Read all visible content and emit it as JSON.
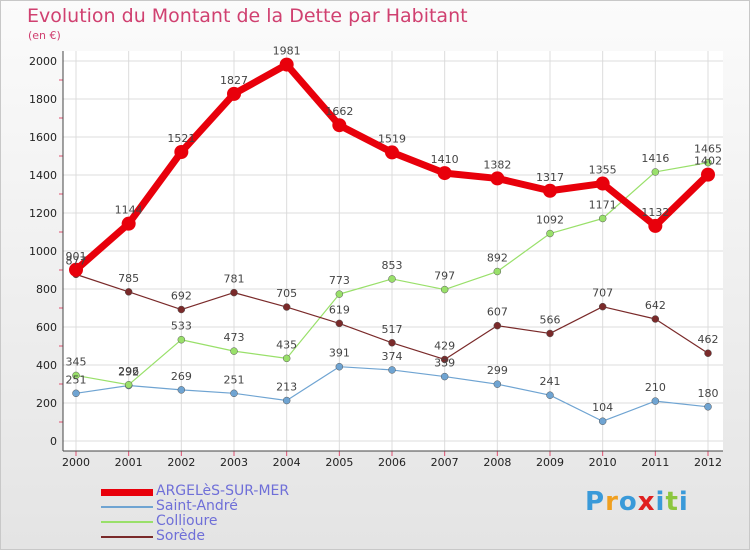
{
  "title": "Evolution du Montant de la Dette par Habitant",
  "unit_label": "(en €)",
  "logo": {
    "letters": [
      "P",
      "r",
      "o",
      "x",
      "i",
      "t",
      "i"
    ],
    "colors": [
      "#3a9ad9",
      "#f0a020",
      "#3a9ad9",
      "#e02020",
      "#3a9ad9",
      "#8cc63e",
      "#3a9ad9"
    ]
  },
  "chart_data": {
    "type": "line",
    "title": "Evolution du Montant de la Dette par Habitant",
    "ylabel": "(en €)",
    "xlabel": "",
    "x": [
      "2000",
      "2001",
      "2002",
      "2003",
      "2004",
      "2005",
      "2006",
      "2007",
      "2008",
      "2009",
      "2010",
      "2011",
      "2012"
    ],
    "ylim": [
      0,
      2000
    ],
    "yticks": [
      "0",
      "200",
      "400",
      "600",
      "800",
      "1000",
      "1200",
      "1400",
      "1600",
      "1800",
      "2000"
    ],
    "grid": true,
    "legend_position": "bottom-left",
    "series": [
      {
        "name": "ARGELèS-SUR-MER",
        "color": "#e8000b",
        "values": [
          901,
          1144,
          1521,
          1827,
          1981,
          1662,
          1519,
          1410,
          1382,
          1317,
          1355,
          1132,
          1402
        ]
      },
      {
        "name": "Saint-André",
        "color": "#6fa4d2",
        "values": [
          251,
          292,
          269,
          251,
          213,
          391,
          374,
          339,
          299,
          241,
          104,
          210,
          180
        ]
      },
      {
        "name": "Collioure",
        "color": "#99e06a",
        "values": [
          345,
          296,
          533,
          473,
          435,
          773,
          853,
          797,
          892,
          1092,
          1171,
          1416,
          1465
        ]
      },
      {
        "name": "Sorède",
        "color": "#7a2a2a",
        "values": [
          877,
          785,
          692,
          781,
          705,
          619,
          517,
          429,
          607,
          566,
          707,
          642,
          462
        ]
      }
    ]
  }
}
